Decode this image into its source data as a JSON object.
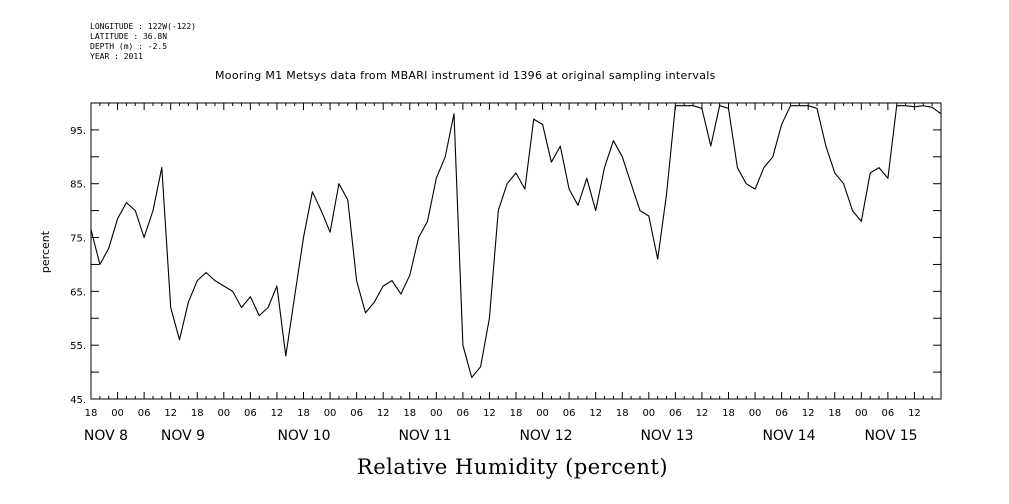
{
  "meta": [
    "LONGITUDE : 122W(-122)",
    "LATITUDE : 36.8N",
    "DEPTH (m) : -2.5",
    "YEAR : 2011"
  ],
  "title": "Mooring M1 Metsys data from MBARI instrument id 1396 at original sampling intervals",
  "chart_data": {
    "type": "line",
    "title": "Mooring M1 Metsys data from MBARI instrument id 1396 at original sampling intervals",
    "xlabel": "Relative Humidity (percent)",
    "ylabel": "percent",
    "ylim": [
      45,
      100
    ],
    "yticks": [
      45,
      55,
      65,
      75,
      85,
      95
    ],
    "ytick_labels": [
      "45.",
      "55.",
      "65.",
      "75.",
      "85.",
      "95."
    ],
    "xlim": [
      "2011-11-07T18:00",
      "2011-11-15T18:00"
    ],
    "xtick_labels": [
      "18",
      "00",
      "06",
      "12",
      "18",
      "00",
      "06",
      "12",
      "18",
      "00",
      "06",
      "12",
      "18",
      "00",
      "06",
      "12",
      "18",
      "00",
      "06",
      "12",
      "18",
      "00",
      "06",
      "12",
      "18",
      "00",
      "06",
      "12",
      "18",
      "00",
      "06",
      "12"
    ],
    "day_labels": [
      "NOV  8",
      "NOV  9",
      "NOV 10",
      "NOV 11",
      "NOV 12",
      "NOV 13",
      "NOV 14",
      "NOV 15"
    ],
    "grid": false,
    "series": [
      {
        "x": [
          "2011-11-07T18:00",
          "2011-11-07T20:00",
          "2011-11-07T22:00",
          "2011-11-08T00:00",
          "2011-11-08T02:00",
          "2011-11-08T04:00",
          "2011-11-08T06:00",
          "2011-11-08T08:00",
          "2011-11-08T10:00",
          "2011-11-08T12:00",
          "2011-11-08T14:00",
          "2011-11-08T16:00",
          "2011-11-08T18:00",
          "2011-11-08T20:00",
          "2011-11-08T22:00",
          "2011-11-09T00:00",
          "2011-11-09T02:00",
          "2011-11-09T04:00",
          "2011-11-09T06:00",
          "2011-11-09T08:00",
          "2011-11-09T10:00",
          "2011-11-09T12:00",
          "2011-11-09T14:00",
          "2011-11-09T16:00",
          "2011-11-09T18:00",
          "2011-11-09T20:00",
          "2011-11-09T22:00",
          "2011-11-10T00:00",
          "2011-11-10T02:00",
          "2011-11-10T04:00",
          "2011-11-10T06:00",
          "2011-11-10T08:00",
          "2011-11-10T10:00",
          "2011-11-10T12:00",
          "2011-11-10T14:00",
          "2011-11-10T16:00",
          "2011-11-10T18:00",
          "2011-11-10T20:00",
          "2011-11-10T22:00",
          "2011-11-11T00:00",
          "2011-11-11T02:00",
          "2011-11-11T04:00",
          "2011-11-11T06:00",
          "2011-11-11T08:00",
          "2011-11-11T10:00",
          "2011-11-11T12:00",
          "2011-11-11T14:00",
          "2011-11-11T16:00",
          "2011-11-11T18:00",
          "2011-11-11T20:00",
          "2011-11-11T22:00",
          "2011-11-12T00:00",
          "2011-11-12T02:00",
          "2011-11-12T04:00",
          "2011-11-12T06:00",
          "2011-11-12T08:00",
          "2011-11-12T10:00",
          "2011-11-12T12:00",
          "2011-11-12T14:00",
          "2011-11-12T16:00",
          "2011-11-12T18:00",
          "2011-11-12T20:00",
          "2011-11-12T22:00",
          "2011-11-13T00:00",
          "2011-11-13T02:00",
          "2011-11-13T04:00",
          "2011-11-13T06:00",
          "2011-11-13T08:00",
          "2011-11-13T10:00",
          "2011-11-13T12:00",
          "2011-11-13T14:00",
          "2011-11-13T16:00",
          "2011-11-13T18:00",
          "2011-11-13T20:00",
          "2011-11-13T22:00",
          "2011-11-14T00:00",
          "2011-11-14T02:00",
          "2011-11-14T04:00",
          "2011-11-14T06:00",
          "2011-11-14T08:00",
          "2011-11-14T10:00",
          "2011-11-14T12:00",
          "2011-11-14T14:00",
          "2011-11-14T16:00",
          "2011-11-14T18:00",
          "2011-11-14T20:00",
          "2011-11-14T22:00",
          "2011-11-15T00:00",
          "2011-11-15T02:00",
          "2011-11-15T04:00",
          "2011-11-15T06:00",
          "2011-11-15T08:00",
          "2011-11-15T10:00",
          "2011-11-15T12:00",
          "2011-11-15T14:00",
          "2011-11-15T16:00",
          "2011-11-15T18:00"
        ],
        "y": [
          76.5,
          70,
          73,
          78.5,
          81.5,
          80,
          75,
          80,
          88,
          62,
          56,
          63,
          67,
          68.5,
          67,
          66,
          65,
          62,
          64,
          60.5,
          62,
          66,
          53,
          64,
          75,
          83.5,
          80,
          76,
          85,
          82,
          67,
          61,
          63,
          66,
          67,
          64.5,
          68,
          75,
          78,
          86,
          90,
          98,
          55,
          49,
          51,
          60,
          80,
          85,
          87,
          84,
          97,
          96,
          89,
          92,
          84,
          81,
          86,
          80,
          88,
          93,
          90,
          85,
          80,
          79,
          71,
          83,
          99.5,
          99.5,
          99.5,
          99,
          92,
          99.5,
          99,
          88,
          85,
          84,
          88,
          90,
          96,
          99.5,
          99.5,
          99.5,
          99,
          92,
          87,
          85,
          80,
          78,
          87,
          88,
          86,
          99.5,
          99.5,
          99.3,
          99.5,
          99.2,
          98
        ]
      }
    ]
  }
}
